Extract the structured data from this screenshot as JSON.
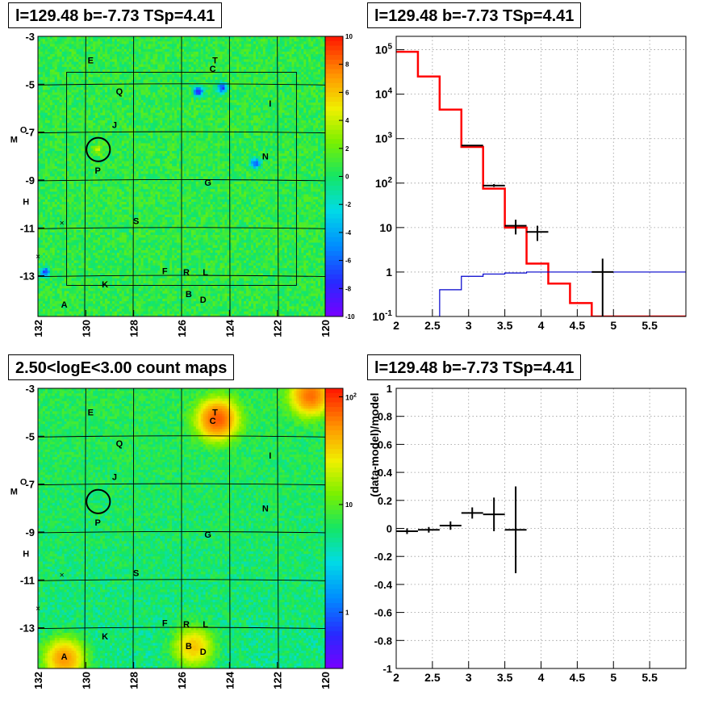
{
  "panels": {
    "top_left_title": "l=129.48 b=-7.73 TSp=4.41",
    "top_right_title": "l=129.48 b=-7.73 TSp=4.41",
    "bottom_left_title": "2.50<logE<3.00 count maps",
    "bottom_right_title": "l=129.48 b=-7.73 TSp=4.41"
  },
  "chart_data": [
    {
      "type": "heatmap",
      "title": "l=129.48 b=-7.73 TSp=4.41",
      "xlabel": "",
      "ylabel": "",
      "xlim": [
        132,
        120
      ],
      "ylim": [
        -14.7,
        -3
      ],
      "x_ticks": [
        "132",
        "130",
        "128",
        "126",
        "124",
        "122",
        "120"
      ],
      "y_ticks": [
        "-3",
        "-5",
        "-7",
        "-9",
        "-11",
        "-13"
      ],
      "colorbar": {
        "min": -10,
        "max": 10,
        "ticks": [
          "10",
          "8",
          "6",
          "4",
          "2",
          "0",
          "-2",
          "-4",
          "-6",
          "-8",
          "-10"
        ]
      },
      "background_level": 0.6,
      "hotspots": [
        {
          "l": 125.3,
          "b": -5.3,
          "value": -8.5
        },
        {
          "l": 124.3,
          "b": -5.15,
          "value": -7.5
        },
        {
          "l": 122.9,
          "b": -8.3,
          "value": -6.5
        },
        {
          "l": 131.7,
          "b": -12.85,
          "value": -7.5
        },
        {
          "l": 129.5,
          "b": -7.75,
          "value": 3.5
        }
      ],
      "sources": [
        {
          "label": "E",
          "l": 129.8,
          "b": -4.0
        },
        {
          "label": "T",
          "l": 124.6,
          "b": -4.0
        },
        {
          "label": "C",
          "l": 124.7,
          "b": -4.35
        },
        {
          "label": "Q",
          "l": 128.6,
          "b": -5.3
        },
        {
          "label": "I",
          "l": 122.3,
          "b": -5.8
        },
        {
          "label": "J",
          "l": 128.8,
          "b": -6.7
        },
        {
          "label": "O",
          "l": 132.6,
          "b": -6.9
        },
        {
          "label": "M",
          "l": 133.0,
          "b": -7.3
        },
        {
          "label": "N",
          "l": 122.5,
          "b": -8.0
        },
        {
          "label": "P",
          "l": 129.5,
          "b": -8.6
        },
        {
          "label": "G",
          "l": 124.9,
          "b": -9.1
        },
        {
          "label": "H",
          "l": 132.5,
          "b": -9.9
        },
        {
          "label": "S",
          "l": 127.9,
          "b": -10.7
        },
        {
          "label": "F",
          "l": 126.7,
          "b": -12.8
        },
        {
          "label": "R",
          "l": 125.8,
          "b": -12.85
        },
        {
          "label": "L",
          "l": 125.0,
          "b": -12.85
        },
        {
          "label": "K",
          "l": 129.2,
          "b": -13.35
        },
        {
          "label": "B",
          "l": 125.7,
          "b": -13.75
        },
        {
          "label": "D",
          "l": 125.1,
          "b": -14.0
        },
        {
          "label": "A",
          "l": 130.9,
          "b": -14.2
        }
      ],
      "markers": [
        {
          "l": 131.0,
          "b": -10.8
        },
        {
          "l": 132.0,
          "b": -12.2
        }
      ],
      "roi_circle": {
        "l": 129.48,
        "b": -7.73,
        "radius_deg": 0.48
      }
    },
    {
      "type": "line",
      "title": "l=129.48 b=-7.73 TSp=4.41",
      "xlabel": "",
      "ylabel": "",
      "xlim": [
        2,
        6
      ],
      "ylim": [
        0.1,
        200000
      ],
      "log_y": true,
      "x_ticks": [
        "2",
        "2.5",
        "3",
        "3.5",
        "4",
        "4.5",
        "5",
        "5.5"
      ],
      "y_ticks": [
        "10^-1",
        "1",
        "10",
        "10^2",
        "10^3",
        "10^4",
        "10^5"
      ],
      "series": [
        {
          "color": "#ff0000",
          "bins": [
            2.0,
            2.3,
            2.6,
            2.9,
            3.2,
            3.5,
            3.8,
            4.1,
            4.4,
            4.7,
            5.0,
            6.0
          ],
          "values": [
            90000,
            25000,
            4500,
            650,
            75,
            10,
            1.55,
            0.55,
            0.2,
            0.1,
            0.1
          ]
        },
        {
          "color": "#0000cc",
          "bins": [
            2.0,
            2.3,
            2.6,
            2.9,
            3.2,
            3.5,
            3.8,
            4.1,
            4.4,
            4.7,
            5.0,
            6.0
          ],
          "values": [
            0.001,
            0.001,
            0.4,
            0.8,
            0.9,
            0.95,
            1.0,
            1.0,
            1.0,
            1.0,
            1.0
          ]
        },
        {
          "color": "#000000",
          "points": [
            {
              "x": 3.05,
              "y": 700,
              "xerr": 0.15,
              "lo": 680,
              "hi": 720
            },
            {
              "x": 3.35,
              "y": 88,
              "xerr": 0.15,
              "lo": 82,
              "hi": 95
            },
            {
              "x": 3.65,
              "y": 11,
              "xerr": 0.15,
              "lo": 7,
              "hi": 15
            },
            {
              "x": 3.95,
              "y": 8,
              "xerr": 0.15,
              "lo": 5,
              "hi": 11
            },
            {
              "x": 4.85,
              "y": 1,
              "xerr": 0.15,
              "lo": 0.1,
              "hi": 2.0
            }
          ]
        }
      ]
    },
    {
      "type": "heatmap",
      "title": "2.50<logE<3.00 count maps",
      "xlabel": "",
      "ylabel": "",
      "xlim": [
        132,
        120
      ],
      "ylim": [
        -14.7,
        -3
      ],
      "x_ticks": [
        "132",
        "130",
        "128",
        "126",
        "124",
        "122",
        "120"
      ],
      "y_ticks": [
        "-3",
        "-5",
        "-7",
        "-9",
        "-11",
        "-13"
      ],
      "colorbar": {
        "log": true,
        "min": 0.3,
        "max": 120,
        "ticks": [
          "10^2",
          "10",
          "1"
        ]
      },
      "hotspots": [
        {
          "l": 124.5,
          "b": -4.3,
          "value": 70
        },
        {
          "l": 130.9,
          "b": -14.3,
          "value": 45
        },
        {
          "l": 125.5,
          "b": -13.8,
          "value": 30
        },
        {
          "l": 120.6,
          "b": -3.3,
          "value": 60
        }
      ],
      "sources": [
        {
          "label": "E",
          "l": 129.8,
          "b": -4.0
        },
        {
          "label": "T",
          "l": 124.6,
          "b": -4.0
        },
        {
          "label": "C",
          "l": 124.7,
          "b": -4.35
        },
        {
          "label": "Q",
          "l": 128.6,
          "b": -5.3
        },
        {
          "label": "I",
          "l": 122.3,
          "b": -5.8
        },
        {
          "label": "J",
          "l": 128.8,
          "b": -6.7
        },
        {
          "label": "O",
          "l": 132.6,
          "b": -6.9
        },
        {
          "label": "M",
          "l": 133.0,
          "b": -7.3
        },
        {
          "label": "N",
          "l": 122.5,
          "b": -8.0
        },
        {
          "label": "P",
          "l": 129.5,
          "b": -8.6
        },
        {
          "label": "G",
          "l": 124.9,
          "b": -9.1
        },
        {
          "label": "H",
          "l": 132.5,
          "b": -9.9
        },
        {
          "label": "S",
          "l": 127.9,
          "b": -10.7
        },
        {
          "label": "F",
          "l": 126.7,
          "b": -12.8
        },
        {
          "label": "R",
          "l": 125.8,
          "b": -12.85
        },
        {
          "label": "L",
          "l": 125.0,
          "b": -12.85
        },
        {
          "label": "K",
          "l": 129.2,
          "b": -13.35
        },
        {
          "label": "B",
          "l": 125.7,
          "b": -13.75
        },
        {
          "label": "D",
          "l": 125.1,
          "b": -14.0
        },
        {
          "label": "A",
          "l": 130.9,
          "b": -14.2
        }
      ],
      "markers": [
        {
          "l": 131.0,
          "b": -10.8
        },
        {
          "l": 132.0,
          "b": -12.2
        }
      ],
      "roi_circle": {
        "l": 129.48,
        "b": -7.73,
        "radius_deg": 0.48
      }
    },
    {
      "type": "scatter",
      "title": "l=129.48 b=-7.73 TSp=4.41",
      "xlabel": "",
      "ylabel": "(data-model)/model",
      "xlim": [
        2,
        6
      ],
      "ylim": [
        -1,
        1
      ],
      "x_ticks": [
        "2",
        "2.5",
        "3",
        "3.5",
        "4",
        "4.5",
        "5",
        "5.5"
      ],
      "y_ticks": [
        "1",
        "0.8",
        "0.6",
        "0.4",
        "0.2",
        "0",
        "-0.2",
        "-0.4",
        "-0.6",
        "-0.8",
        "-1"
      ],
      "points": [
        {
          "x": 2.15,
          "y": -0.02,
          "xerr": 0.15,
          "yerr": 0.02
        },
        {
          "x": 2.45,
          "y": -0.01,
          "xerr": 0.15,
          "yerr": 0.02
        },
        {
          "x": 2.75,
          "y": 0.02,
          "xerr": 0.15,
          "yerr": 0.03
        },
        {
          "x": 3.05,
          "y": 0.11,
          "xerr": 0.15,
          "yerr": 0.04
        },
        {
          "x": 3.35,
          "y": 0.1,
          "xerr": 0.15,
          "yerr": 0.12
        },
        {
          "x": 3.65,
          "y": -0.01,
          "xerr": 0.15,
          "yerr": 0.31
        }
      ]
    }
  ]
}
